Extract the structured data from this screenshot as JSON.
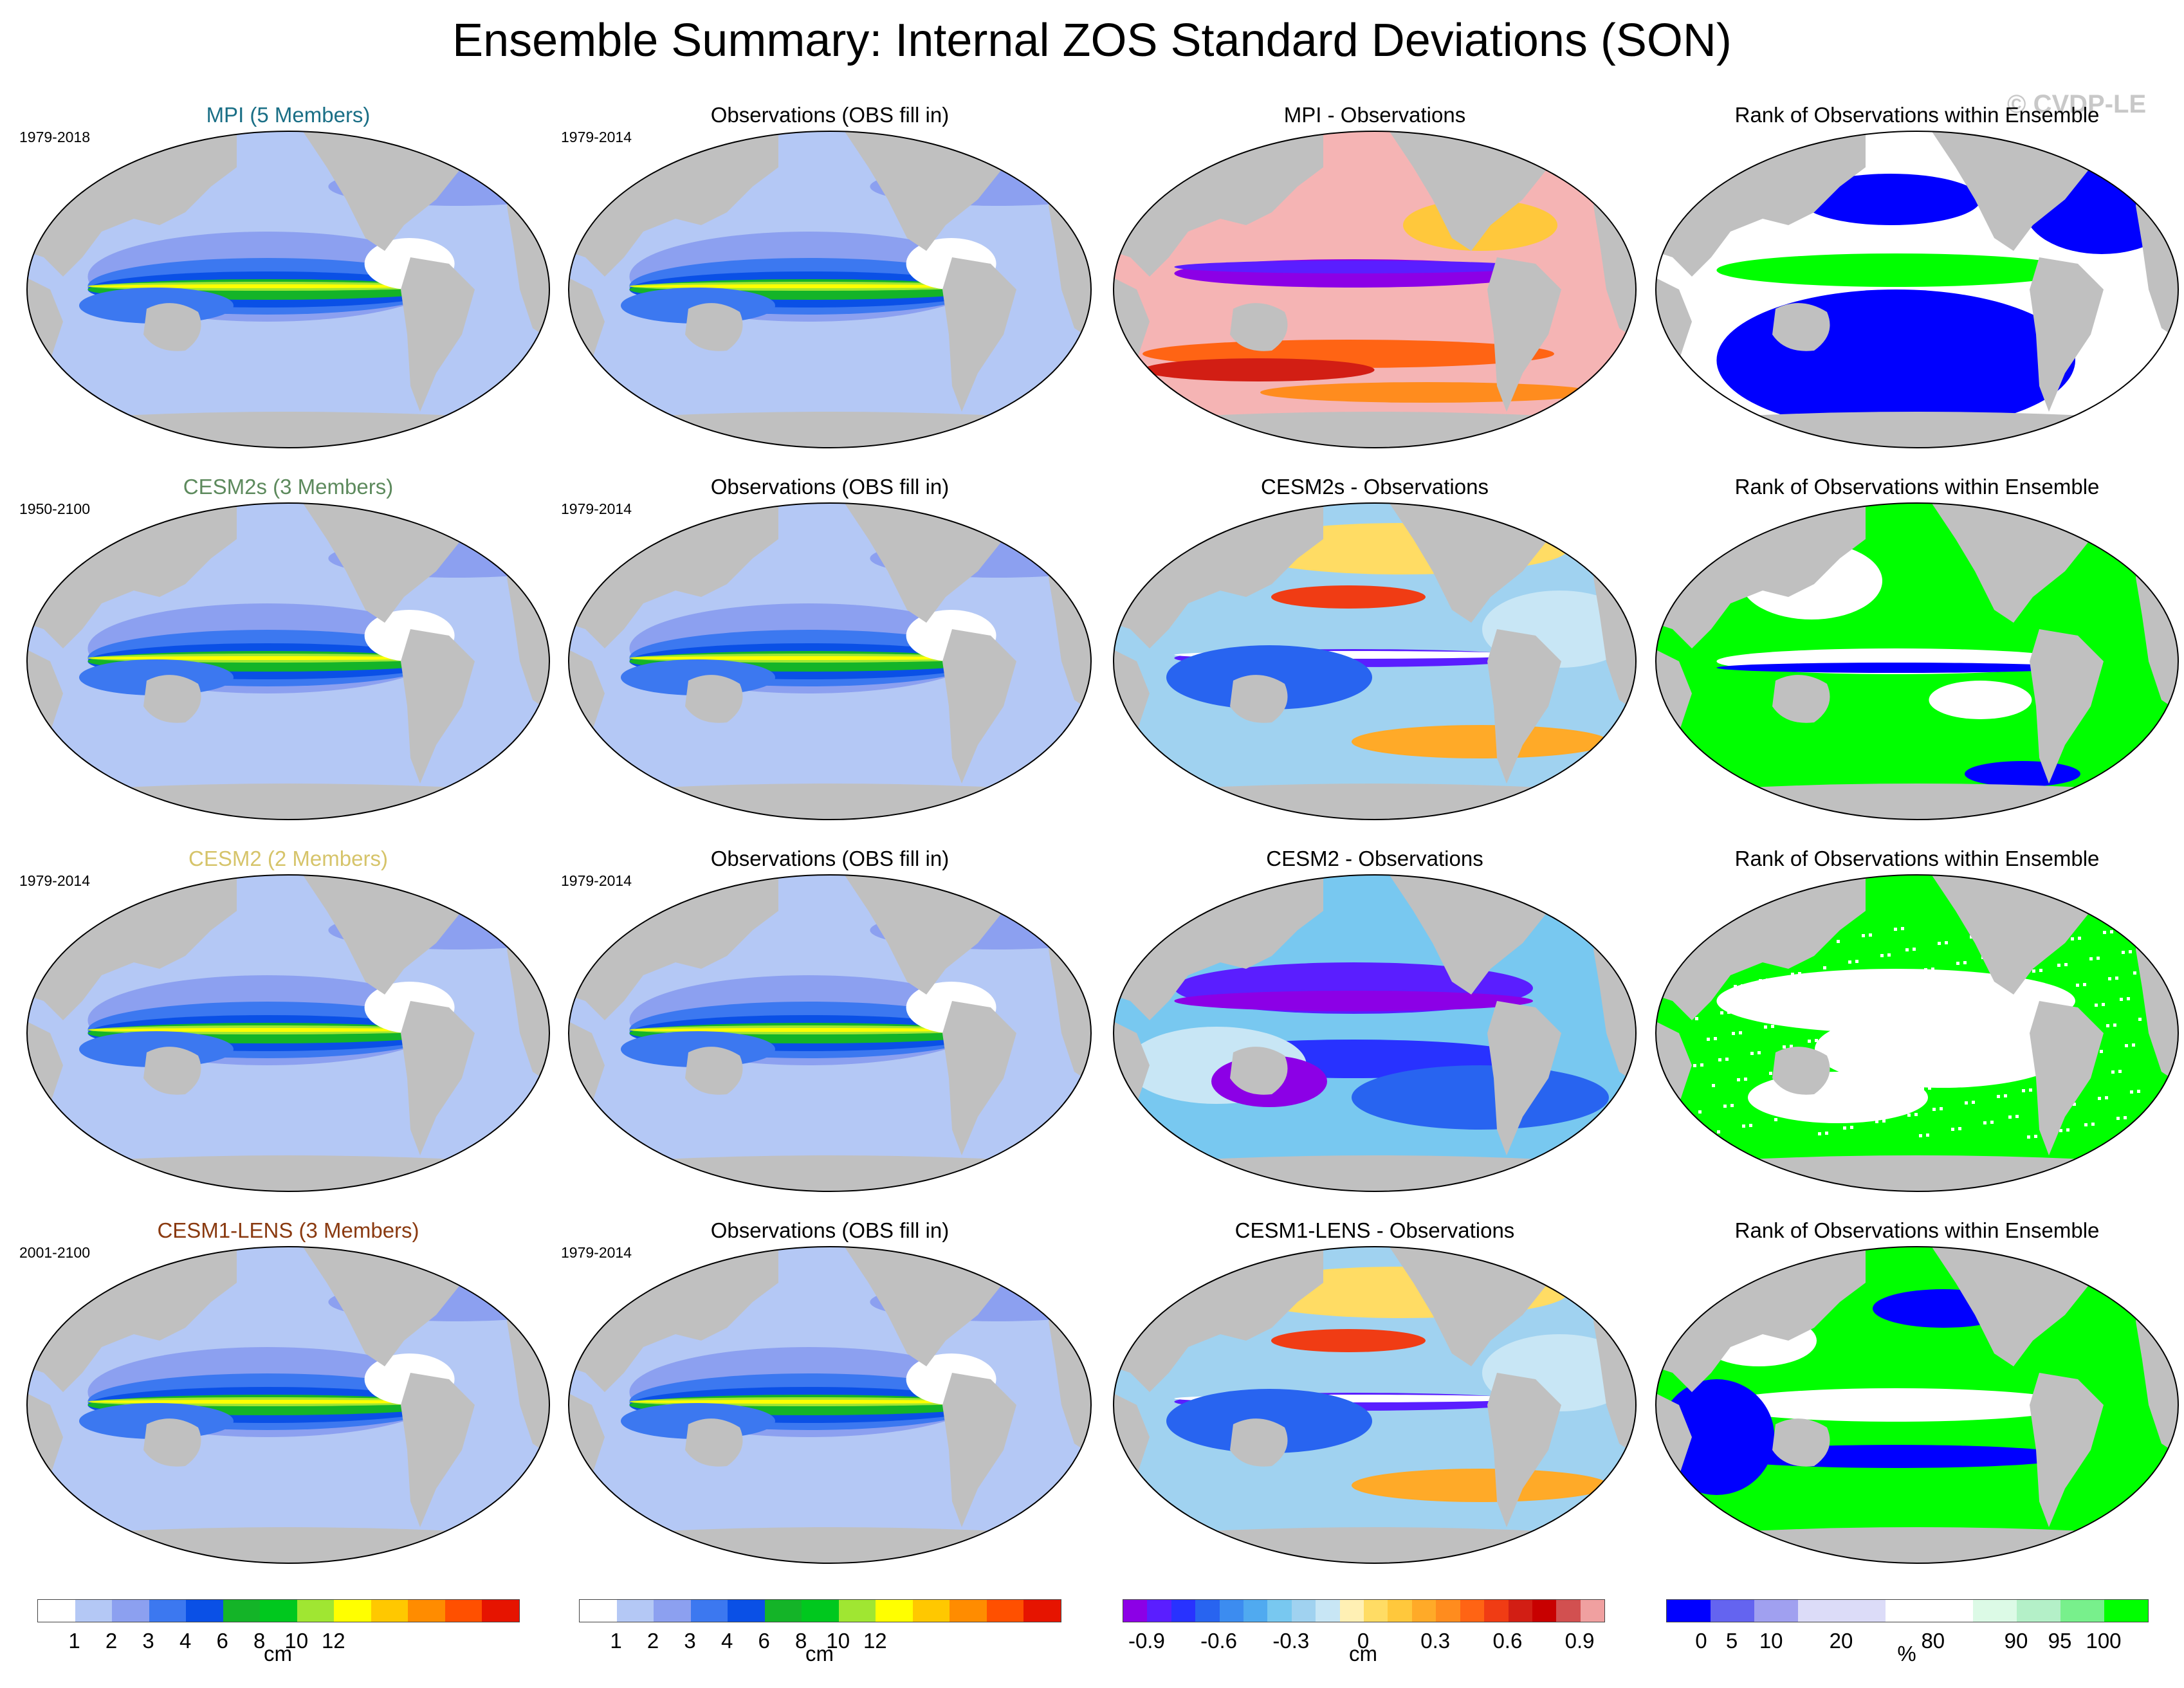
{
  "title": "Ensemble Summary: Internal ZOS Standard Deviations (SON)",
  "copyright": "© CVDP-LE",
  "colors": {
    "land": "#c0c0c0",
    "ocean_low": "#b4c8f5",
    "model_name_mpi": "#1a6f86",
    "model_name_cesm2s": "#5d8a5d",
    "model_name_cesm2": "#d6c46a",
    "model_name_cesm1": "#8a3a10"
  },
  "rows": [
    {
      "model": {
        "title": "MPI (5 Members)",
        "period": "1979-2018",
        "title_color": "#1a6f86",
        "field": "std"
      },
      "obs": {
        "title": "Observations (OBS fill in)",
        "period": "1979-2014",
        "field": "std"
      },
      "diff": {
        "title": "MPI - Observations",
        "field": "diff_warm"
      },
      "rank": {
        "title": "Rank of Observations within Ensemble",
        "field": "rank_blue"
      }
    },
    {
      "model": {
        "title": "CESM2s (3 Members)",
        "period": "1950-2100",
        "title_color": "#5d8a5d",
        "field": "std"
      },
      "obs": {
        "title": "Observations (OBS fill in)",
        "period": "1979-2014",
        "field": "std"
      },
      "diff": {
        "title": "CESM2s - Observations",
        "field": "diff_mixed"
      },
      "rank": {
        "title": "Rank of Observations within Ensemble",
        "field": "rank_green"
      }
    },
    {
      "model": {
        "title": "CESM2 (2 Members)",
        "period": "1979-2014",
        "title_color": "#d6c46a",
        "field": "std"
      },
      "obs": {
        "title": "Observations (OBS fill in)",
        "period": "1979-2014",
        "field": "std"
      },
      "diff": {
        "title": "CESM2 - Observations",
        "field": "diff_cool"
      },
      "rank": {
        "title": "Rank of Observations within Ensemble",
        "field": "rank_green_speckle"
      }
    },
    {
      "model": {
        "title": "CESM1-LENS (3 Members)",
        "period": "2001-2100",
        "title_color": "#8a3a10",
        "field": "std"
      },
      "obs": {
        "title": "Observations (OBS fill in)",
        "period": "1979-2014",
        "field": "std"
      },
      "diff": {
        "title": "CESM1-LENS - Observations",
        "field": "diff_mixed"
      },
      "rank": {
        "title": "Rank of Observations within Ensemble",
        "field": "rank_mixed"
      }
    }
  ],
  "colorbars": [
    {
      "colors": [
        "#ffffff",
        "#b4c8f5",
        "#8ca0f0",
        "#3c78f0",
        "#0a50e6",
        "#14b428",
        "#00c81e",
        "#a0e632",
        "#ffff00",
        "#ffc800",
        "#ff8c00",
        "#ff5000",
        "#e61400"
      ],
      "labels": [
        "1",
        "2",
        "3",
        "4",
        "6",
        "8",
        "10",
        "12"
      ],
      "unit": "cm"
    },
    {
      "colors": [
        "#ffffff",
        "#b4c8f5",
        "#8ca0f0",
        "#3c78f0",
        "#0a50e6",
        "#14b428",
        "#00c81e",
        "#a0e632",
        "#ffff00",
        "#ffc800",
        "#ff8c00",
        "#ff5000",
        "#e61400"
      ],
      "labels": [
        "1",
        "2",
        "3",
        "4",
        "6",
        "8",
        "10",
        "12"
      ],
      "unit": "cm"
    },
    {
      "colors": [
        "#8c00e6",
        "#5a1eff",
        "#2832ff",
        "#2864f0",
        "#3c8cf0",
        "#50aaf0",
        "#78c8f0",
        "#a0d2f0",
        "#c8e6f5",
        "#fff0b4",
        "#ffdc64",
        "#ffc83c",
        "#ffaa28",
        "#ff8c1e",
        "#ff6414",
        "#f03c14",
        "#d21e14",
        "#c80000",
        "#d25050",
        "#f0a0a0"
      ],
      "labels": [
        "-0.9",
        "-0.6",
        "-0.3",
        "0",
        "0.3",
        "0.6",
        "0.9"
      ],
      "unit": "cm"
    },
    {
      "colors": [
        "#0000ff",
        "#6464f0",
        "#a0a0f0",
        "#dcdcf8",
        "#dcdcf8",
        "#ffffff",
        "#ffffff",
        "#dcfae6",
        "#b4f0c8",
        "#78f08c",
        "#00ff00"
      ],
      "labels": [
        "0",
        "5",
        "10",
        "20",
        "80",
        "90",
        "95",
        "100"
      ],
      "unit": "%"
    }
  ]
}
